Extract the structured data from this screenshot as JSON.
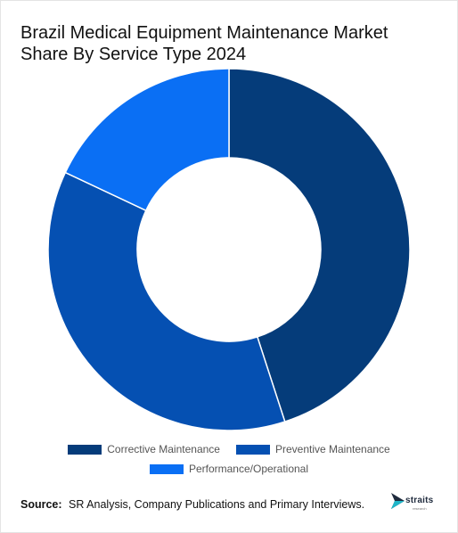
{
  "chart_data": {
    "type": "pie",
    "variant": "donut",
    "title": "Brazil Medical Equipment Maintenance Market Share By Service Type 2024",
    "categories": [
      "Corrective Maintenance",
      "Preventive Maintenance",
      "Performance/Operational"
    ],
    "values": [
      45,
      37,
      18
    ],
    "unit": "%",
    "colors": [
      "#053c7a",
      "#0550b2",
      "#0a6ff4"
    ],
    "start_angle_deg": 0,
    "direction": "clockwise",
    "legend_position": "bottom",
    "grid": false
  },
  "footer": {
    "source_label": "Source:",
    "source_text": "SR Analysis, Company Publications and Primary Interviews.",
    "brand_name": "straits",
    "brand_sub": "research"
  }
}
